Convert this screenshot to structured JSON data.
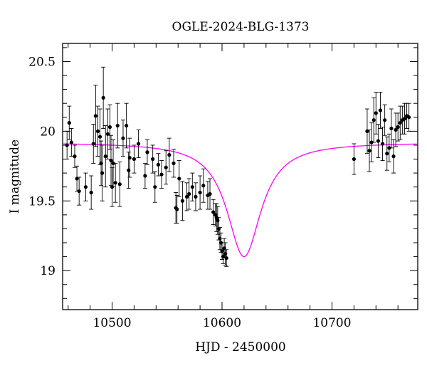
{
  "chart_data": {
    "type": "scatter",
    "title": "OGLE-2024-BLG-1373",
    "xlabel": "HJD - 2450000",
    "ylabel": "I magnitude",
    "xlim": [
      10455,
      10778
    ],
    "ylim": [
      20.63,
      18.72
    ],
    "y_inverted": true,
    "x_ticks": [
      10500,
      10600,
      10700
    ],
    "y_ticks": [
      19,
      19.5,
      20,
      20.5
    ],
    "x_minor_step": 20,
    "y_minor_step": 0.1,
    "grid": false,
    "colors": {
      "points": "#000000",
      "model": "#ff00ff",
      "axes": "#000000"
    },
    "series": [
      {
        "kind": "errorbar-scatter",
        "x": [
          10459,
          10461,
          10463,
          10466,
          10468,
          10470,
          10476,
          10481,
          10483,
          10485,
          10487,
          10489,
          10490,
          10491,
          10492,
          10494,
          10496,
          10498,
          10499,
          10500,
          10501,
          10503,
          10505,
          10507,
          10510,
          10513,
          10515,
          10516,
          10520,
          10524,
          10530,
          10532,
          10537,
          10539,
          10542,
          10545,
          10549,
          10552,
          10556,
          10558,
          10559,
          10561,
          10564,
          10568,
          10570,
          10573,
          10576,
          10580,
          10583,
          10587,
          10589,
          10592,
          10594,
          10595,
          10596,
          10597,
          10598,
          10599,
          10600,
          10601,
          10602,
          10603,
          10604,
          10720,
          10732,
          10734,
          10736,
          10738,
          10740,
          10742,
          10744,
          10746,
          10748,
          10750,
          10752,
          10754,
          10756,
          10758,
          10760,
          10762,
          10764,
          10766,
          10768,
          10770
        ],
        "y": [
          19.9,
          20.06,
          19.92,
          19.82,
          19.66,
          19.57,
          19.6,
          19.56,
          19.91,
          20.11,
          20.0,
          19.96,
          19.77,
          19.7,
          20.24,
          19.82,
          19.98,
          20.03,
          19.79,
          19.6,
          19.77,
          19.63,
          20.04,
          19.62,
          19.95,
          20.04,
          19.72,
          19.81,
          19.8,
          19.91,
          19.68,
          19.85,
          19.8,
          19.6,
          19.76,
          19.69,
          19.74,
          19.83,
          19.77,
          19.45,
          19.44,
          19.66,
          19.5,
          19.53,
          19.55,
          19.6,
          19.53,
          19.56,
          19.61,
          19.54,
          19.55,
          19.42,
          19.4,
          19.38,
          19.36,
          19.3,
          19.23,
          19.2,
          19.14,
          19.1,
          19.16,
          19.12,
          19.09,
          19.8,
          20.0,
          19.86,
          19.92,
          20.08,
          20.13,
          19.93,
          20.15,
          19.91,
          20.08,
          19.84,
          19.88,
          20.02,
          19.82,
          20.01,
          20.03,
          20.06,
          20.08,
          20.09,
          20.11,
          20.1
        ],
        "err": [
          0.1,
          0.12,
          0.1,
          0.08,
          0.09,
          0.1,
          0.1,
          0.12,
          0.14,
          0.22,
          0.18,
          0.2,
          0.16,
          0.2,
          0.22,
          0.22,
          0.18,
          0.16,
          0.18,
          0.14,
          0.17,
          0.14,
          0.16,
          0.16,
          0.13,
          0.16,
          0.13,
          0.14,
          0.1,
          0.1,
          0.09,
          0.09,
          0.1,
          0.11,
          0.08,
          0.1,
          0.12,
          0.12,
          0.1,
          0.11,
          0.1,
          0.13,
          0.14,
          0.1,
          0.11,
          0.1,
          0.1,
          0.12,
          0.12,
          0.1,
          0.11,
          0.09,
          0.08,
          0.1,
          0.1,
          0.08,
          0.08,
          0.07,
          0.06,
          0.05,
          0.07,
          0.08,
          0.06,
          0.11,
          0.16,
          0.15,
          0.14,
          0.16,
          0.15,
          0.12,
          0.13,
          0.12,
          0.11,
          0.12,
          0.1,
          0.14,
          0.12,
          0.12,
          0.1,
          0.12,
          0.1,
          0.11,
          0.09,
          0.1
        ]
      },
      {
        "kind": "model-curve",
        "baseline": 19.92,
        "peak_x": 10620,
        "peak_y": 19.1,
        "width": 19
      }
    ]
  }
}
